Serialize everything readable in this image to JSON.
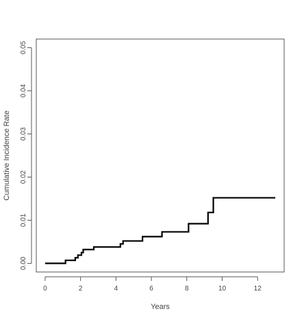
{
  "chart_data": {
    "type": "line",
    "title": "",
    "xlabel": "Years",
    "ylabel": "Cumulative Incidence Rate",
    "xlim": [
      -0.5,
      13.5
    ],
    "ylim": [
      -0.002,
      0.052
    ],
    "x_ticks": [
      0,
      2,
      4,
      6,
      8,
      10,
      12
    ],
    "x_tick_labels": [
      "0",
      "2",
      "4",
      "6",
      "8",
      "10",
      "12"
    ],
    "y_ticks": [
      0.0,
      0.01,
      0.02,
      0.03,
      0.04,
      0.05
    ],
    "y_tick_labels": [
      "0.00",
      "0.01",
      "0.02",
      "0.03",
      "0.04",
      "0.05"
    ],
    "grid": false,
    "legend": "none",
    "line_color": "#000000",
    "series": [
      {
        "step": true,
        "x": [
          0,
          1.15,
          1.7,
          1.85,
          2.05,
          2.15,
          2.75,
          4.25,
          4.4,
          5.5,
          6.6,
          8.1,
          9.2,
          9.5,
          13.0
        ],
        "y": [
          0.0,
          0.0007,
          0.0013,
          0.0019,
          0.0025,
          0.0032,
          0.0038,
          0.0045,
          0.0052,
          0.0062,
          0.0073,
          0.0092,
          0.0118,
          0.0152,
          0.0152
        ]
      }
    ]
  }
}
